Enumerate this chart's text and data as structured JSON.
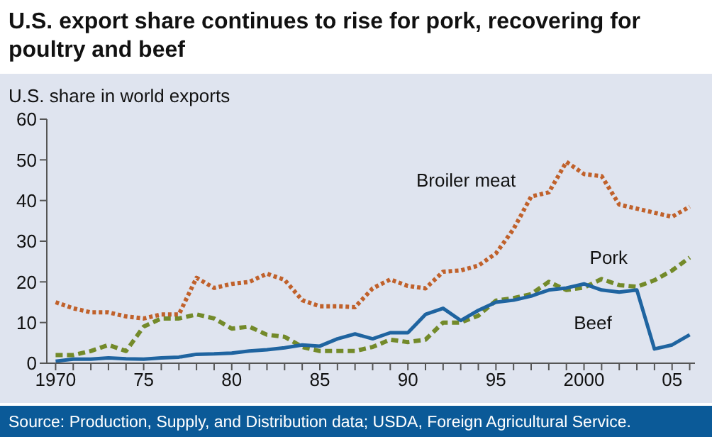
{
  "chart_data": {
    "type": "line",
    "title": "U.S. export share continues to rise for pork, recovering for poultry and beef",
    "ylabel": "U.S. share in world exports",
    "x": [
      1970,
      1971,
      1972,
      1973,
      1974,
      1975,
      1976,
      1977,
      1978,
      1979,
      1980,
      1981,
      1982,
      1983,
      1984,
      1985,
      1986,
      1987,
      1988,
      1989,
      1990,
      1991,
      1992,
      1993,
      1994,
      1995,
      1996,
      1997,
      1998,
      1999,
      2000,
      2001,
      2002,
      2003,
      2004,
      2005,
      2006
    ],
    "series": [
      {
        "name": "Broiler meat",
        "color": "#c0612b",
        "line_style": "dotted",
        "values": [
          15,
          13.5,
          12.5,
          12.5,
          11.5,
          11,
          12,
          12,
          21,
          18.5,
          19.5,
          20,
          22,
          20.5,
          15.5,
          14,
          14,
          13.8,
          18.4,
          20.6,
          19,
          18.4,
          22.5,
          22.8,
          24,
          27,
          33,
          41,
          42,
          49.5,
          46.5,
          46,
          39,
          38,
          37,
          36,
          38.5
        ]
      },
      {
        "name": "Pork",
        "color": "#738a2a",
        "line_style": "dashed",
        "values": [
          2,
          2,
          3,
          4.5,
          3,
          9,
          11,
          11,
          12,
          11,
          8.5,
          9,
          7,
          6.5,
          4,
          3,
          3,
          3,
          4,
          5.8,
          5.2,
          5.8,
          10,
          10,
          11.7,
          15.4,
          16,
          17,
          20,
          18,
          18.6,
          20.7,
          19.2,
          18.8,
          20.4,
          22.8,
          26
        ]
      },
      {
        "name": "Beef",
        "color": "#1f64a0",
        "line_style": "solid",
        "values": [
          0.5,
          1,
          1,
          1.3,
          1.1,
          1,
          1.3,
          1.5,
          2.2,
          2.3,
          2.5,
          3,
          3.3,
          3.8,
          4.5,
          4.2,
          6,
          7.2,
          6,
          7.5,
          7.5,
          12,
          13.5,
          10.5,
          13,
          15,
          15.5,
          16.5,
          18,
          18.5,
          19.5,
          18,
          17.5,
          18,
          3.5,
          4.5,
          7
        ]
      }
    ],
    "xlim": [
      1969.5,
      2006.3
    ],
    "xticks": [
      {
        "value": 1970,
        "label": "1970"
      },
      {
        "value": 1971,
        "label": null
      },
      {
        "value": 1972,
        "label": null
      },
      {
        "value": 1973,
        "label": null
      },
      {
        "value": 1974,
        "label": null
      },
      {
        "value": 1975,
        "label": "75"
      },
      {
        "value": 1976,
        "label": null
      },
      {
        "value": 1977,
        "label": null
      },
      {
        "value": 1978,
        "label": null
      },
      {
        "value": 1979,
        "label": null
      },
      {
        "value": 1980,
        "label": "80"
      },
      {
        "value": 1981,
        "label": null
      },
      {
        "value": 1982,
        "label": null
      },
      {
        "value": 1983,
        "label": null
      },
      {
        "value": 1984,
        "label": null
      },
      {
        "value": 1985,
        "label": "85"
      },
      {
        "value": 1986,
        "label": null
      },
      {
        "value": 1987,
        "label": null
      },
      {
        "value": 1988,
        "label": null
      },
      {
        "value": 1989,
        "label": null
      },
      {
        "value": 1990,
        "label": "90"
      },
      {
        "value": 1991,
        "label": null
      },
      {
        "value": 1992,
        "label": null
      },
      {
        "value": 1993,
        "label": null
      },
      {
        "value": 1994,
        "label": null
      },
      {
        "value": 1995,
        "label": "95"
      },
      {
        "value": 1996,
        "label": null
      },
      {
        "value": 1997,
        "label": null
      },
      {
        "value": 1998,
        "label": null
      },
      {
        "value": 1999,
        "label": null
      },
      {
        "value": 2000,
        "label": "2000"
      },
      {
        "value": 2001,
        "label": null
      },
      {
        "value": 2002,
        "label": null
      },
      {
        "value": 2003,
        "label": null
      },
      {
        "value": 2004,
        "label": null
      },
      {
        "value": 2005,
        "label": "05"
      },
      {
        "value": 2006,
        "label": null
      }
    ],
    "ylim": [
      0,
      60
    ],
    "yticks": [
      0,
      10,
      20,
      30,
      40,
      50,
      60
    ],
    "grid": false,
    "legend": false,
    "marker": "none",
    "annotations": [
      "Source:  Production, Supply, and Distribution data; USDA, Foreign Agricultural Service."
    ]
  }
}
